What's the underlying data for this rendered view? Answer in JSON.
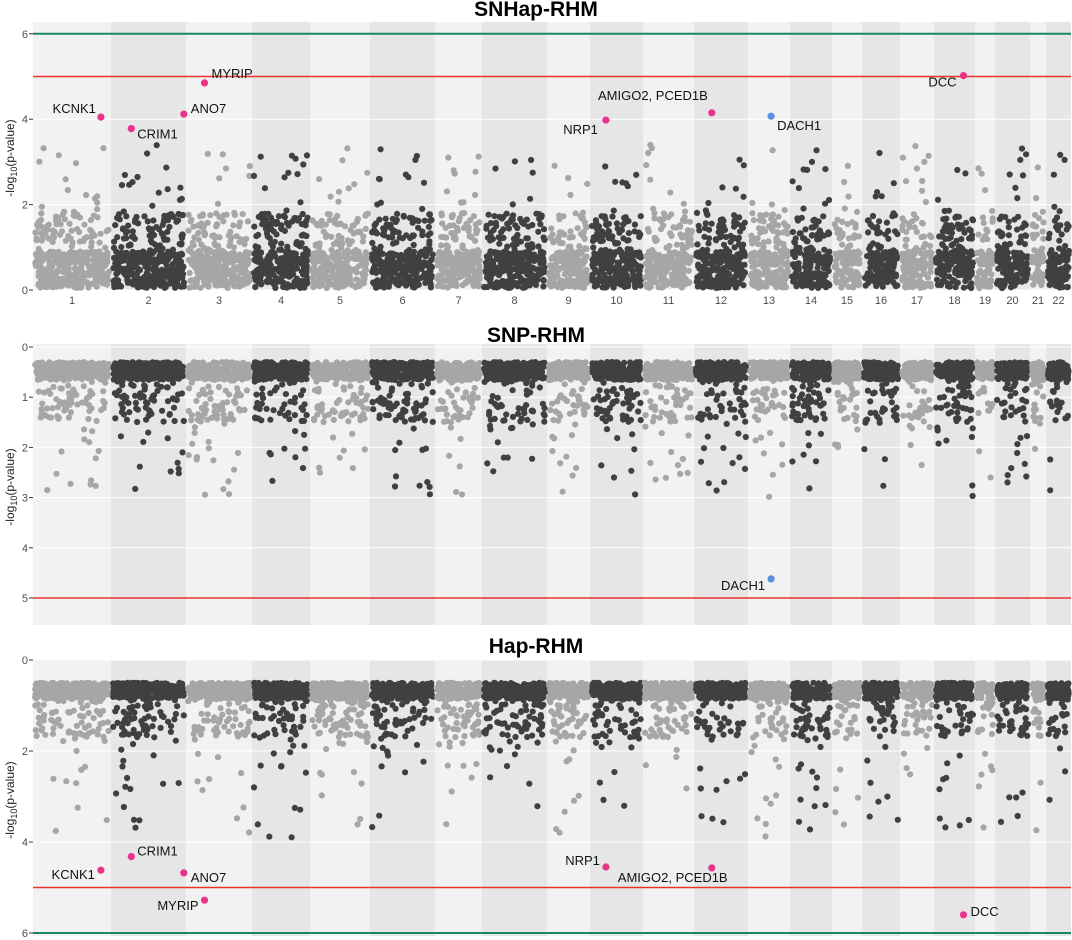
{
  "chart_data": [
    {
      "type": "scatter",
      "title": "SNHap-RHM",
      "ylabel": "-log10(p-value)",
      "ylabel_parts": [
        "-log",
        "10",
        "(p-value)"
      ],
      "xlabel": "",
      "y_direction": "up",
      "ylim": [
        0,
        6.2
      ],
      "yticks": [
        "0",
        "2",
        "4",
        "6"
      ],
      "yticks_values": [
        0,
        2,
        4,
        6
      ],
      "x_tick_labels": [
        "1",
        "2",
        "3",
        "4",
        "5",
        "6",
        "7",
        "8",
        "9",
        "10",
        "11",
        "12",
        "13",
        "14",
        "15",
        "16",
        "17",
        "18",
        "19",
        "20",
        "21",
        "22"
      ],
      "threshold_lines": [
        {
          "value": 5,
          "color": "#e8342a"
        },
        {
          "value": 6,
          "color": "#1a8a5a"
        }
      ],
      "highlights": [
        {
          "gene": "KCNK1",
          "chr": 1,
          "pos": 0.87,
          "y": 4.05,
          "color": "#e8338a"
        },
        {
          "gene": "CRIM1",
          "chr": 2,
          "pos": 0.27,
          "y": 3.78,
          "color": "#e8338a"
        },
        {
          "gene": "MYRIP",
          "chr": 3,
          "pos": 0.28,
          "y": 4.85,
          "color": "#e8338a"
        },
        {
          "gene": "ANO7",
          "chr": 2,
          "pos": 0.97,
          "y": 4.12,
          "color": "#e8338a"
        },
        {
          "gene": "NRP1",
          "chr": 10,
          "pos": 0.3,
          "y": 3.98,
          "color": "#e8338a"
        },
        {
          "gene": "AMIGO2, PCED1B",
          "chr": 12,
          "pos": 0.33,
          "y": 4.15,
          "color": "#e8338a"
        },
        {
          "gene": "DACH1",
          "chr": 13,
          "pos": 0.55,
          "y": 4.07,
          "color": "#5b8fe0"
        },
        {
          "gene": "DCC",
          "chr": 18,
          "pos": 0.72,
          "y": 5.02,
          "color": "#e8338a"
        }
      ]
    },
    {
      "type": "scatter",
      "title": "SNP-RHM",
      "ylabel": "-log10(p-value)",
      "ylabel_parts": [
        "-log",
        "10",
        "(p-value)"
      ],
      "xlabel": "",
      "y_direction": "down",
      "ylim": [
        0,
        5.5
      ],
      "yticks": [
        "0",
        "1",
        "2",
        "3",
        "4",
        "5"
      ],
      "yticks_values": [
        0,
        1,
        2,
        3,
        4,
        5
      ],
      "threshold_lines": [
        {
          "value": 5,
          "color": "#e8342a"
        }
      ],
      "highlights": [
        {
          "gene": "DACH1",
          "chr": 13,
          "pos": 0.55,
          "y": 4.62,
          "color": "#5b8fe0"
        }
      ]
    },
    {
      "type": "scatter",
      "title": "Hap-RHM",
      "ylabel": "-log10(p-value)",
      "ylabel_parts": [
        "-log",
        "10",
        "(p-value)"
      ],
      "xlabel": "",
      "y_direction": "down",
      "ylim": [
        0,
        6.1
      ],
      "yticks": [
        "0",
        "2",
        "4",
        "6"
      ],
      "yticks_values": [
        0,
        2,
        4,
        6
      ],
      "threshold_lines": [
        {
          "value": 5,
          "color": "#e8342a"
        },
        {
          "value": 6,
          "color": "#1a8a5a"
        }
      ],
      "highlights": [
        {
          "gene": "KCNK1",
          "chr": 1,
          "pos": 0.87,
          "y": 4.62,
          "color": "#e8338a"
        },
        {
          "gene": "CRIM1",
          "chr": 2,
          "pos": 0.27,
          "y": 4.32,
          "color": "#e8338a"
        },
        {
          "gene": "ANO7",
          "chr": 2,
          "pos": 0.97,
          "y": 4.68,
          "color": "#e8338a"
        },
        {
          "gene": "MYRIP",
          "chr": 3,
          "pos": 0.28,
          "y": 5.28,
          "color": "#e8338a"
        },
        {
          "gene": "NRP1",
          "chr": 10,
          "pos": 0.3,
          "y": 4.55,
          "color": "#e8338a"
        },
        {
          "gene": "AMIGO2, PCED1B",
          "chr": 12,
          "pos": 0.33,
          "y": 4.57,
          "color": "#e8338a"
        },
        {
          "gene": "DCC",
          "chr": 18,
          "pos": 0.72,
          "y": 5.6,
          "color": "#e8338a"
        }
      ]
    }
  ],
  "colors": {
    "odd_chromosome_points": "#a6a6a6",
    "even_chromosome_points": "#404040",
    "odd_band": "#f2f2f2",
    "even_band": "#e6e6e6"
  }
}
